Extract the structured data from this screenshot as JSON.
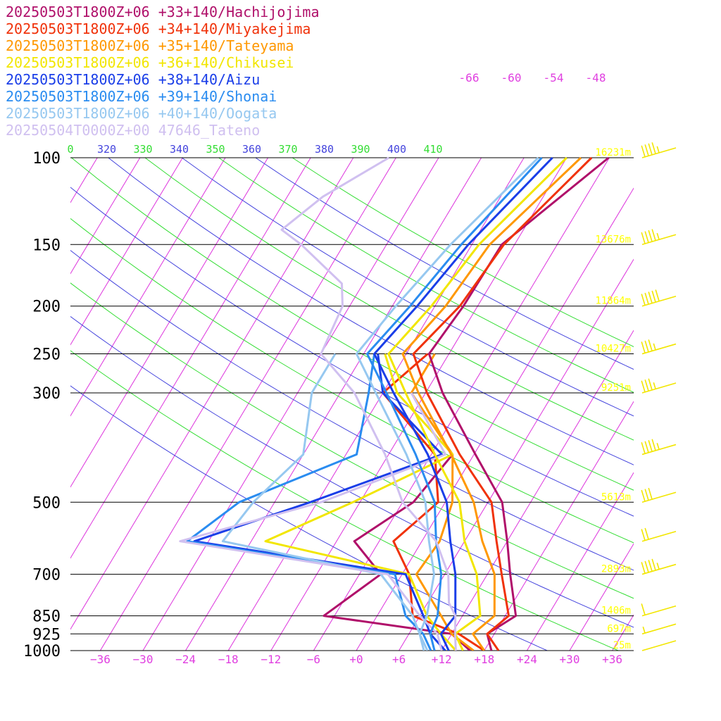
{
  "chart_data": {
    "type": "line",
    "title": "",
    "xlabel": "",
    "ylabel": "",
    "diagram": "skew-T log-P",
    "pressure_levels": [
      100,
      150,
      200,
      250,
      300,
      500,
      700,
      850,
      925,
      1000
    ],
    "pressure_labels": [
      "100",
      "150",
      "200",
      "250",
      "300",
      "500",
      "700",
      "850",
      "925",
      "1000"
    ],
    "temperature_ticks": [
      -36,
      -30,
      -24,
      -18,
      -12,
      -6,
      0,
      6,
      12,
      18,
      24,
      30,
      36
    ],
    "temperature_tick_labels": [
      "−36",
      "−30",
      "−24",
      "−18",
      "−12",
      "−6",
      "+0",
      "+6",
      "+12",
      "+18",
      "+24",
      "+30",
      "+36"
    ],
    "isotherm_top_labels": [
      "-66",
      "-60",
      "-54",
      "-48"
    ],
    "theta_labels": [
      {
        "text": "0",
        "color": "#33dd33"
      },
      {
        "text": "320",
        "color": "#4444dd"
      },
      {
        "text": "330",
        "color": "#33dd33"
      },
      {
        "text": "340",
        "color": "#4444dd"
      },
      {
        "text": "350",
        "color": "#33dd33"
      },
      {
        "text": "360",
        "color": "#4444dd"
      },
      {
        "text": "370",
        "color": "#33dd33"
      },
      {
        "text": "380",
        "color": "#4444dd"
      },
      {
        "text": "390",
        "color": "#33dd33"
      },
      {
        "text": "400",
        "color": "#4444dd"
      },
      {
        "text": "410",
        "color": "#33dd33"
      }
    ],
    "height_labels": [
      {
        "p": 100,
        "text": "16231m"
      },
      {
        "p": 150,
        "text": "13676m"
      },
      {
        "p": 200,
        "text": "11864m"
      },
      {
        "p": 250,
        "text": "10427m"
      },
      {
        "p": 300,
        "text": "9251m"
      },
      {
        "p": 500,
        "text": "5613m"
      },
      {
        "p": 700,
        "text": "2893m"
      },
      {
        "p": 850,
        "text": "1406m"
      },
      {
        "p": 925,
        "text": "697m"
      },
      {
        "p": 1000,
        "text": "25m"
      }
    ],
    "series": [
      {
        "name": "20250503T1800Z+06 +33+140/Hachijojima",
        "color": "#b0106a",
        "x": [
          19.0,
          17.0,
          19.5,
          15.2,
          12.0,
          8.0,
          0.2,
          -9.6,
          -14.8,
          -14.0,
          -13.8,
          -6.1
        ],
        "y": [
          1000,
          925,
          850,
          700,
          600,
          500,
          400,
          300,
          250,
          200,
          150,
          100
        ]
      },
      {
        "name": "20250503T1800Z+06 +34+140/Miyakejima",
        "color": "#f0320a",
        "x": [
          20.0,
          17.0,
          18.5,
          14.0,
          10.5,
          6.5,
          -2.0,
          -11.8,
          -17.0,
          -14.5,
          -13.5,
          -8.5
        ],
        "y": [
          1000,
          925,
          850,
          700,
          600,
          500,
          400,
          300,
          250,
          200,
          150,
          100
        ]
      },
      {
        "name": "20250503T1800Z+06 +35+140/Tateyama",
        "color": "#ff9800",
        "x": [
          18.0,
          15.0,
          16.5,
          13.0,
          8.5,
          4.0,
          -3.2,
          -13.0,
          -18.5,
          -16.5,
          -15.5,
          -10.0
        ],
        "y": [
          1000,
          925,
          850,
          700,
          600,
          500,
          400,
          300,
          250,
          200,
          150,
          100
        ]
      },
      {
        "name": "20250503T1800Z+06 +36+140/Chikusei",
        "color": "#f2e600",
        "x": [
          15.0,
          12.5,
          14.5,
          10.5,
          6.0,
          2.0,
          -5.5,
          -14.8,
          -20.5,
          -18.5,
          -17.0,
          -12.0
        ],
        "y": [
          1000,
          925,
          850,
          700,
          600,
          500,
          400,
          300,
          250,
          200,
          150,
          100
        ]
      },
      {
        "name": "20250503T1800Z+06 +38+140/Aizu",
        "color": "#1a3ee8",
        "x": [
          13.0,
          10.5,
          11.0,
          7.5,
          4.0,
          0.2,
          -6.5,
          -16.5,
          -22.5,
          -20.5,
          -18.5,
          -14.0
        ],
        "y": [
          1000,
          925,
          850,
          700,
          600,
          500,
          400,
          300,
          250,
          200,
          150,
          100
        ]
      },
      {
        "name": "20250503T1800Z+06 +39+140/Shonai",
        "color": "#2a8cf0",
        "x": [
          11.0,
          9.0,
          8.5,
          5.5,
          2.0,
          -1.5,
          -8.2,
          -17.5,
          -23.5,
          -21.5,
          -19.5,
          -15.5
        ],
        "y": [
          1000,
          925,
          850,
          700,
          600,
          500,
          400,
          300,
          250,
          200,
          150,
          100
        ]
      },
      {
        "name": "20250503T1800Z+06 +40+140/Oogata",
        "color": "#96c8f0",
        "x": [
          10.0,
          7.5,
          7.0,
          4.5,
          1.0,
          -2.8,
          -9.5,
          -19.0,
          -25.0,
          -23.5,
          -21.0,
          -16.0
        ],
        "y": [
          1000,
          925,
          850,
          700,
          600,
          500,
          400,
          300,
          250,
          200,
          150,
          100
        ]
      },
      {
        "name": "20250504T0000Z+00 47646_Tateno",
        "color": "#d0c0f0",
        "x": [
          14.0,
          13.0,
          12.5,
          11.0,
          9.0,
          6.5,
          2.0,
          -6.0,
          -12.5,
          -22.0,
          -30.0,
          -31.0,
          -33.0,
          -42.0,
          -46.0,
          -43.0,
          -37.0
        ],
        "y": [
          1000,
          950,
          925,
          850,
          800,
          700,
          600,
          500,
          400,
          300,
          250,
          200,
          180,
          150,
          140,
          120,
          100
        ]
      }
    ],
    "dewpoint_series": [
      {
        "name": "20250503T1800Z+06 +33+140/Hachijojima",
        "color": "#b0106a",
        "x": [
          16.0,
          12.0,
          -7.5,
          -3.0,
          -9.5,
          -4.5,
          -3.0
        ],
        "y": [
          1000,
          925,
          850,
          700,
          600,
          500,
          400
        ]
      },
      {
        "name": "20250503T1800Z+06 +34+140/Miyakejima",
        "color": "#f0320a",
        "x": [
          18.0,
          13.0,
          5.0,
          1.0,
          -4.0,
          -1.0,
          -5.5,
          -18.0,
          -15.0
        ],
        "y": [
          1000,
          925,
          850,
          700,
          600,
          500,
          400,
          300,
          250
        ]
      },
      {
        "name": "20250503T1800Z+06 +35+140/Tateyama",
        "color": "#ff9800",
        "x": [
          16.5,
          12.0,
          9.0,
          2.0,
          2.5,
          1.0,
          -3.0,
          -14.0,
          -14.0
        ],
        "y": [
          1000,
          925,
          850,
          700,
          600,
          500,
          400,
          300,
          250
        ]
      },
      {
        "name": "20250503T1800Z+06 +36+140/Chikusei",
        "color": "#f2e600",
        "x": [
          14.0,
          10.5,
          7.0,
          1.0,
          -22.0,
          -13.0,
          -3.0,
          -16.0,
          -21.0
        ],
        "y": [
          1000,
          925,
          850,
          700,
          600,
          500,
          400,
          300,
          250
        ]
      },
      {
        "name": "20250503T1800Z+06 +38+140/Aizu",
        "color": "#1a3ee8",
        "x": [
          12.5,
          9.0,
          6.5,
          0.5,
          -32.0,
          -19.0,
          -4.5,
          -18.0,
          -22.0
        ],
        "y": [
          1000,
          925,
          850,
          700,
          600,
          500,
          400,
          300,
          250
        ]
      },
      {
        "name": "20250503T1800Z+06 +39+140/Shonai",
        "color": "#2a8cf0",
        "x": [
          10.5,
          8.0,
          4.0,
          -1.0,
          -33.0,
          -29.0,
          -16.5,
          -20.0,
          -22.5
        ],
        "y": [
          1000,
          925,
          850,
          700,
          600,
          500,
          400,
          300,
          250
        ]
      },
      {
        "name": "20250503T1800Z+06 +40+140/Oogata",
        "color": "#96c8f0",
        "x": [
          9.5,
          7.5,
          5.0,
          -3.0,
          -28.0,
          -27.0,
          -24.0,
          -28.0,
          -28.0
        ],
        "y": [
          1000,
          925,
          850,
          700,
          600,
          500,
          400,
          300,
          250
        ]
      },
      {
        "name": "20250504T0000Z+00 47646_Tateno",
        "color": "#d0c0f0",
        "x": [
          12.0,
          10.0,
          6.0,
          -2.0,
          -34.0,
          -17.5,
          -4.0,
          -14.0
        ],
        "y": [
          1000,
          925,
          850,
          700,
          600,
          500,
          400,
          300
        ]
      }
    ],
    "wind_barbs": [
      {
        "p": 100,
        "speed_kt": 45
      },
      {
        "p": 150,
        "speed_kt": 45
      },
      {
        "p": 200,
        "speed_kt": 50
      },
      {
        "p": 250,
        "speed_kt": 35
      },
      {
        "p": 300,
        "speed_kt": 35
      },
      {
        "p": 400,
        "speed_kt": 45
      },
      {
        "p": 500,
        "speed_kt": 30
      },
      {
        "p": 600,
        "speed_kt": 20
      },
      {
        "p": 700,
        "speed_kt": 45
      },
      {
        "p": 850,
        "speed_kt": 10
      },
      {
        "p": 925,
        "speed_kt": 5
      },
      {
        "p": 1000,
        "speed_kt": 0
      }
    ],
    "xlim": [
      -40,
      40
    ],
    "ylim": [
      1000,
      100
    ],
    "grid": true,
    "legend_position": "top-left"
  }
}
